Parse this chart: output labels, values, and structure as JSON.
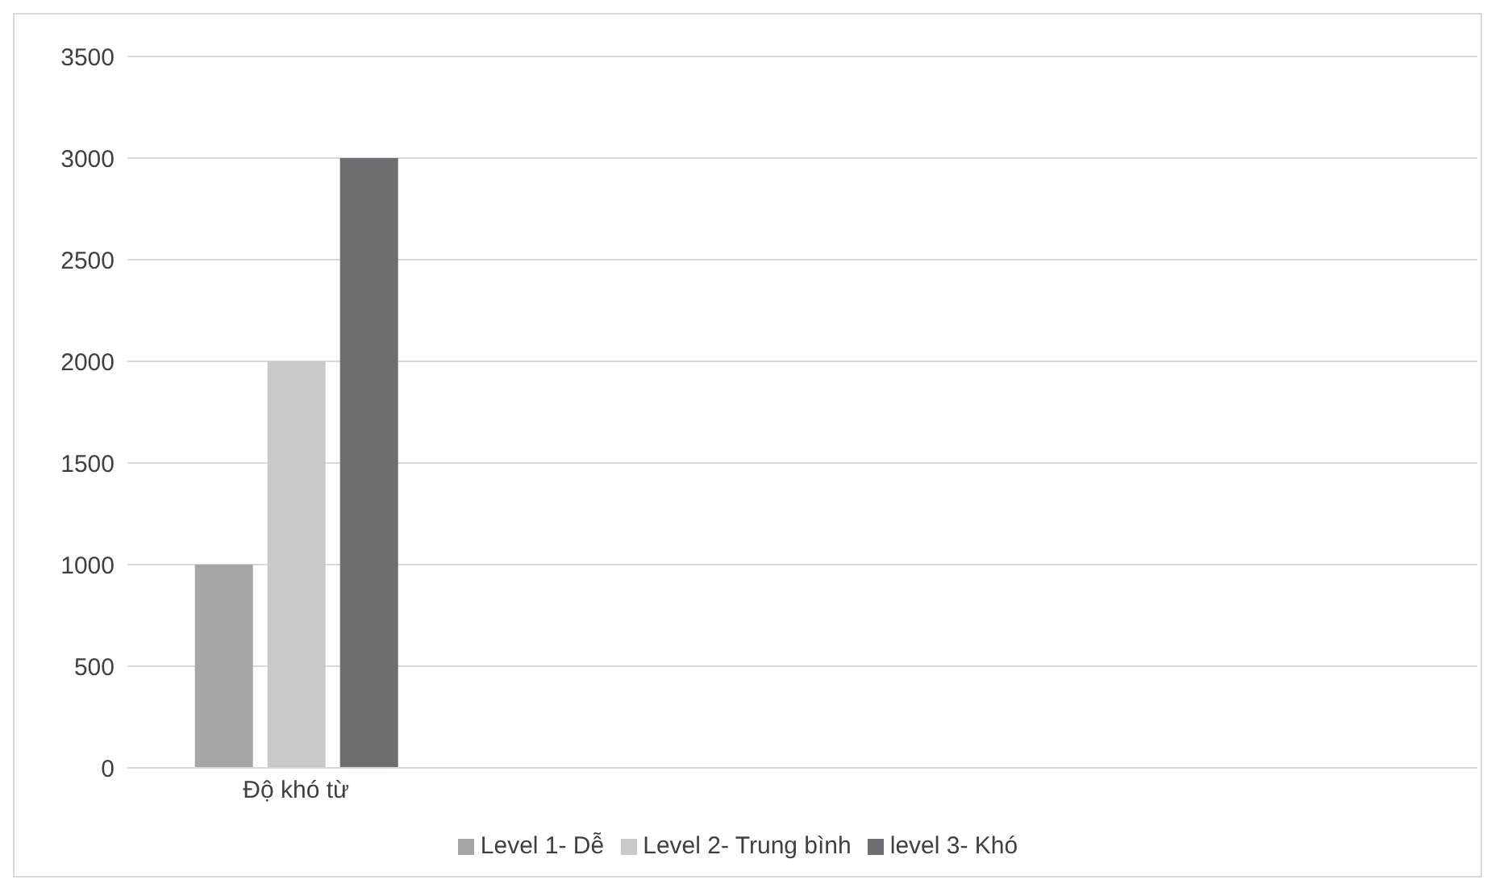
{
  "chart_data": {
    "type": "bar",
    "categories": [
      "Độ khó từ",
      null,
      null,
      null
    ],
    "series": [
      {
        "name": "Level 1- Dễ",
        "color": "#a5a5a5",
        "values": [
          1000,
          null,
          null,
          null
        ]
      },
      {
        "name": "Level 2- Trung bình",
        "color": "#c9c9c9",
        "values": [
          2000,
          null,
          null,
          null
        ]
      },
      {
        "name": "level 3- Khó",
        "color": "#6d6e71",
        "values": [
          3000,
          null,
          null,
          null
        ]
      }
    ],
    "ylim": [
      0,
      3500
    ],
    "yticks": [
      0,
      500,
      1000,
      1500,
      2000,
      2500,
      3000,
      3500
    ],
    "grid": "y",
    "legend": "bottom"
  }
}
